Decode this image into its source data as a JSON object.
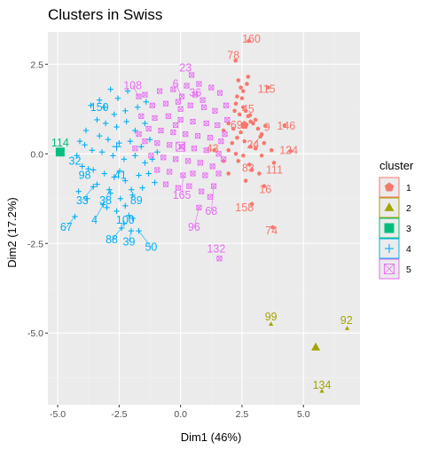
{
  "chart_data": {
    "type": "scatter",
    "title": "Clusters in Swiss",
    "xlabel": "Dim1 (46%)",
    "ylabel": "Dim2 (17.2%)",
    "xlim": [
      -5.4,
      7.3
    ],
    "ylim": [
      -7.0,
      3.4
    ],
    "xticks": [
      -5.0,
      -2.5,
      0.0,
      2.5,
      5.0
    ],
    "xtick_labels": [
      "-5.0",
      "-2.5",
      "0.0",
      "2.5",
      "5.0"
    ],
    "yticks": [
      2.5,
      0.0,
      -2.5,
      -5.0
    ],
    "ytick_labels": [
      "2.5",
      "0.0",
      "-2.5",
      "-5.0"
    ],
    "grid": true,
    "legend": {
      "title": "cluster",
      "position": "right",
      "entries": [
        "1",
        "2",
        "3",
        "4",
        "5"
      ]
    },
    "colors": {
      "1": "#F8766D",
      "2": "#A3A500",
      "3": "#00BF7D",
      "4": "#00B0F6",
      "5": "#E76BF3",
      "panel": "#EBEBEB",
      "grid_major": "#FFFFFF",
      "grid_minor": "#F2F2F2"
    },
    "markers": {
      "1": "pentagon",
      "2": "triangle",
      "3": "square",
      "4": "cross",
      "5": "square-x"
    },
    "centers": [
      {
        "cluster": "1",
        "x": 2.6,
        "y": 0.8
      },
      {
        "cluster": "2",
        "x": 5.5,
        "y": -5.4
      },
      {
        "cluster": "3",
        "x": -4.9,
        "y": 0.05
      },
      {
        "cluster": "4",
        "x": -2.6,
        "y": 0.2
      },
      {
        "cluster": "5",
        "x": 0.0,
        "y": 0.2
      }
    ],
    "labeled_points": [
      {
        "label": "160",
        "cluster": "1",
        "x": 2.78,
        "y": 3.15,
        "lx": 2.88,
        "ly": 3.2
      },
      {
        "label": "78",
        "cluster": "1",
        "x": 2.24,
        "y": 2.6,
        "lx": 2.15,
        "ly": 2.75
      },
      {
        "label": "115",
        "cluster": "1",
        "x": 3.55,
        "y": 1.85,
        "lx": 3.5,
        "ly": 1.8
      },
      {
        "label": "45",
        "cluster": "1",
        "x": 2.83,
        "y": 1.08,
        "lx": 2.75,
        "ly": 1.25
      },
      {
        "label": "69",
        "cluster": "1",
        "x": 2.6,
        "y": 0.8,
        "lx": 2.28,
        "ly": 0.8
      },
      {
        "label": "9",
        "cluster": "1",
        "x": 3.45,
        "y": 0.78,
        "lx": 3.52,
        "ly": 0.74
      },
      {
        "label": "146",
        "cluster": "1",
        "x": 4.23,
        "y": 0.79,
        "lx": 4.3,
        "ly": 0.77
      },
      {
        "label": "24",
        "cluster": "1",
        "x": 3.25,
        "y": 0.48,
        "lx": 2.95,
        "ly": 0.26
      },
      {
        "label": "124",
        "cluster": "1",
        "x": 4.47,
        "y": 0.08,
        "lx": 4.4,
        "ly": 0.1
      },
      {
        "label": "43",
        "cluster": "1",
        "x": 1.37,
        "y": 0.1,
        "lx": 1.3,
        "ly": 0.15
      },
      {
        "label": "83",
        "cluster": "1",
        "x": 2.8,
        "y": -0.3,
        "lx": 2.75,
        "ly": -0.4
      },
      {
        "label": "111",
        "cluster": "1",
        "x": 3.8,
        "y": -0.25,
        "lx": 3.82,
        "ly": -0.45
      },
      {
        "label": "16",
        "cluster": "1",
        "x": 3.4,
        "y": -0.9,
        "lx": 3.45,
        "ly": -1.0
      },
      {
        "label": "158",
        "cluster": "1",
        "x": 2.9,
        "y": -1.4,
        "lx": 2.6,
        "ly": -1.5
      },
      {
        "label": "74",
        "cluster": "1",
        "x": 3.75,
        "y": -2.05,
        "lx": 3.7,
        "ly": -2.15
      },
      {
        "label": "99",
        "cluster": "2",
        "x": 3.68,
        "y": -4.75,
        "lx": 3.68,
        "ly": -4.55
      },
      {
        "label": "92",
        "cluster": "2",
        "x": 6.78,
        "y": -4.87,
        "lx": 6.75,
        "ly": -4.65
      },
      {
        "label": "134",
        "cluster": "2",
        "x": 5.75,
        "y": -6.62,
        "lx": 5.75,
        "ly": -6.45
      },
      {
        "label": "114",
        "cluster": "3",
        "x": -4.95,
        "y": 0.09,
        "lx": -4.9,
        "ly": 0.3
      },
      {
        "label": "150",
        "cluster": "4",
        "x": -3.3,
        "y": 1.5,
        "lx": -3.3,
        "ly": 1.3
      },
      {
        "label": "32",
        "cluster": "4",
        "x": -4.22,
        "y": -0.05,
        "lx": -4.3,
        "ly": -0.2
      },
      {
        "label": "98",
        "cluster": "4",
        "x": -3.75,
        "y": -0.42,
        "lx": -3.9,
        "ly": -0.6
      },
      {
        "label": "41",
        "cluster": "4",
        "x": -2.48,
        "y": -0.48,
        "lx": -2.45,
        "ly": -0.6
      },
      {
        "label": "33",
        "cluster": "4",
        "x": -3.55,
        "y": -0.92,
        "lx": -4.0,
        "ly": -1.3
      },
      {
        "label": "38",
        "cluster": "4",
        "x": -2.9,
        "y": -1.0,
        "lx": -3.05,
        "ly": -1.3
      },
      {
        "label": "89",
        "cluster": "4",
        "x": -1.95,
        "y": -1.15,
        "lx": -1.8,
        "ly": -1.3
      },
      {
        "label": "4",
        "cluster": "4",
        "x": -3.15,
        "y": -1.42,
        "lx": -3.5,
        "ly": -1.85
      },
      {
        "label": "100",
        "cluster": "4",
        "x": -2.1,
        "y": -1.72,
        "lx": -2.25,
        "ly": -1.85
      },
      {
        "label": "67",
        "cluster": "4",
        "x": -4.3,
        "y": -1.75,
        "lx": -4.65,
        "ly": -2.05
      },
      {
        "label": "88",
        "cluster": "4",
        "x": -2.4,
        "y": -2.07,
        "lx": -2.8,
        "ly": -2.4
      },
      {
        "label": "39",
        "cluster": "4",
        "x": -2.01,
        "y": -2.15,
        "lx": -2.1,
        "ly": -2.45
      },
      {
        "label": "50",
        "cluster": "4",
        "x": -1.7,
        "y": -2.15,
        "lx": -1.2,
        "ly": -2.6
      },
      {
        "label": "108",
        "cluster": "5",
        "x": -1.7,
        "y": 1.6,
        "lx": -1.95,
        "ly": 1.9
      },
      {
        "label": "23",
        "cluster": "5",
        "x": 0.45,
        "y": 2.2,
        "lx": 0.2,
        "ly": 2.4
      },
      {
        "label": "6",
        "cluster": "5",
        "x": 0.05,
        "y": 1.6,
        "lx": -0.2,
        "ly": 1.95
      },
      {
        "label": "36",
        "cluster": "5",
        "x": 0.9,
        "y": 1.5,
        "lx": 0.6,
        "ly": 1.7
      },
      {
        "label": "165",
        "cluster": "5",
        "x": 0.1,
        "y": -0.6,
        "lx": 0.05,
        "ly": -1.15
      },
      {
        "label": "68",
        "cluster": "5",
        "x": 1.35,
        "y": -0.9,
        "lx": 1.25,
        "ly": -1.6
      },
      {
        "label": "96",
        "cluster": "5",
        "x": 0.75,
        "y": -1.5,
        "lx": 0.55,
        "ly": -2.05
      },
      {
        "label": "132",
        "cluster": "5",
        "x": 1.58,
        "y": -2.92,
        "lx": 1.45,
        "ly": -2.65
      }
    ],
    "points": [
      {
        "cluster": "1",
        "coords": [
          [
            2.75,
            2.15
          ],
          [
            2.7,
            1.95
          ],
          [
            2.35,
            2.05
          ],
          [
            2.45,
            1.85
          ],
          [
            2.55,
            1.75
          ],
          [
            2.3,
            1.6
          ],
          [
            2.5,
            1.55
          ],
          [
            2.25,
            1.4
          ],
          [
            2.55,
            1.3
          ],
          [
            2.65,
            1.2
          ],
          [
            2.2,
            1.2
          ],
          [
            2.4,
            1.1
          ],
          [
            2.75,
            1.05
          ],
          [
            2.85,
            0.9
          ],
          [
            2.95,
            0.85
          ],
          [
            3.05,
            0.95
          ],
          [
            3.15,
            0.7
          ],
          [
            3.3,
            0.55
          ],
          [
            2.45,
            0.6
          ],
          [
            2.3,
            0.45
          ],
          [
            2.1,
            0.3
          ],
          [
            2.6,
            0.35
          ],
          [
            2.85,
            0.2
          ],
          [
            3.05,
            0.15
          ],
          [
            1.95,
            0.1
          ],
          [
            2.25,
            0.0
          ],
          [
            2.55,
            -0.05
          ],
          [
            3.3,
            -0.05
          ],
          [
            1.75,
            -0.2
          ],
          [
            2.35,
            -0.2
          ],
          [
            2.9,
            -0.45
          ],
          [
            3.2,
            -0.55
          ],
          [
            2.65,
            -0.75
          ],
          [
            1.95,
            -0.55
          ],
          [
            1.75,
            0.65
          ],
          [
            1.95,
            0.85
          ],
          [
            2.15,
            0.7
          ],
          [
            3.4,
            0.3
          ],
          [
            3.7,
            0.1
          ]
        ]
      },
      {
        "cluster": "4",
        "coords": [
          [
            -2.85,
            1.8
          ],
          [
            -2.55,
            1.55
          ],
          [
            -2.15,
            1.75
          ],
          [
            -3.1,
            1.3
          ],
          [
            -2.7,
            1.1
          ],
          [
            -2.25,
            1.2
          ],
          [
            -1.75,
            1.3
          ],
          [
            -1.4,
            1.45
          ],
          [
            -3.4,
            0.95
          ],
          [
            -3.05,
            0.85
          ],
          [
            -2.6,
            0.75
          ],
          [
            -2.2,
            0.9
          ],
          [
            -1.85,
            0.65
          ],
          [
            -1.45,
            0.85
          ],
          [
            -3.3,
            0.5
          ],
          [
            -2.95,
            0.4
          ],
          [
            -2.5,
            0.3
          ],
          [
            -2.05,
            0.35
          ],
          [
            -1.6,
            0.2
          ],
          [
            -1.25,
            0.4
          ],
          [
            -3.9,
            0.25
          ],
          [
            -3.6,
            0.1
          ],
          [
            -3.2,
            0.05
          ],
          [
            -2.75,
            -0.05
          ],
          [
            -2.3,
            -0.15
          ],
          [
            -1.85,
            -0.05
          ],
          [
            -1.45,
            -0.25
          ],
          [
            -4.0,
            -0.35
          ],
          [
            -3.55,
            -0.45
          ],
          [
            -3.1,
            -0.55
          ],
          [
            -2.7,
            -0.65
          ],
          [
            -2.25,
            -0.75
          ],
          [
            -1.7,
            -0.6
          ],
          [
            -1.3,
            -0.55
          ],
          [
            -3.4,
            -0.85
          ],
          [
            -2.85,
            -1.1
          ],
          [
            -2.45,
            -1.25
          ],
          [
            -2.0,
            -1.0
          ],
          [
            -1.55,
            -0.95
          ],
          [
            -3.0,
            -1.5
          ],
          [
            -2.6,
            -1.6
          ],
          [
            -2.25,
            -1.45
          ],
          [
            -3.8,
            -1.25
          ],
          [
            -4.15,
            -1.05
          ],
          [
            -1.95,
            -1.8
          ],
          [
            -2.3,
            -1.95
          ],
          [
            -1.15,
            -0.15
          ],
          [
            -0.95,
            0.05
          ],
          [
            -1.05,
            -0.8
          ],
          [
            -3.65,
            1.35
          ],
          [
            -3.85,
            0.65
          ],
          [
            -4.1,
            0.35
          ]
        ]
      },
      {
        "cluster": "5",
        "coords": [
          [
            -1.45,
            1.65
          ],
          [
            -0.85,
            1.75
          ],
          [
            -0.3,
            1.8
          ],
          [
            0.25,
            1.9
          ],
          [
            0.75,
            1.95
          ],
          [
            1.25,
            1.85
          ],
          [
            1.6,
            1.7
          ],
          [
            -1.15,
            1.35
          ],
          [
            -0.6,
            1.4
          ],
          [
            -0.1,
            1.45
          ],
          [
            0.4,
            1.35
          ],
          [
            0.95,
            1.3
          ],
          [
            1.4,
            1.2
          ],
          [
            1.85,
            1.35
          ],
          [
            -1.6,
            1.05
          ],
          [
            -1.05,
            1.0
          ],
          [
            -0.5,
            1.05
          ],
          [
            0.0,
            0.95
          ],
          [
            0.5,
            0.9
          ],
          [
            1.05,
            0.85
          ],
          [
            1.5,
            0.8
          ],
          [
            1.9,
            0.95
          ],
          [
            -1.3,
            0.7
          ],
          [
            -0.8,
            0.65
          ],
          [
            -0.3,
            0.6
          ],
          [
            0.2,
            0.55
          ],
          [
            0.7,
            0.5
          ],
          [
            1.2,
            0.45
          ],
          [
            1.65,
            0.35
          ],
          [
            -1.45,
            0.35
          ],
          [
            -0.95,
            0.3
          ],
          [
            -0.45,
            0.25
          ],
          [
            0.05,
            0.2
          ],
          [
            0.55,
            0.15
          ],
          [
            1.05,
            0.1
          ],
          [
            1.55,
            0.0
          ],
          [
            -1.2,
            -0.05
          ],
          [
            -0.7,
            -0.1
          ],
          [
            -0.2,
            -0.15
          ],
          [
            0.3,
            -0.2
          ],
          [
            0.8,
            -0.25
          ],
          [
            1.3,
            -0.35
          ],
          [
            -0.95,
            -0.45
          ],
          [
            -0.45,
            -0.5
          ],
          [
            0.5,
            -0.55
          ],
          [
            1.0,
            -0.6
          ],
          [
            1.55,
            -0.55
          ],
          [
            -0.6,
            -0.85
          ],
          [
            -0.1,
            -0.95
          ],
          [
            0.35,
            -0.9
          ],
          [
            0.85,
            -1.05
          ],
          [
            1.2,
            -1.2
          ],
          [
            -1.7,
            0.55
          ],
          [
            -1.85,
            0.15
          ],
          [
            1.8,
            0.55
          ],
          [
            0.0,
            1.25
          ],
          [
            0.6,
            1.65
          ],
          [
            -0.2,
            0.8
          ],
          [
            1.75,
            -0.15
          ]
        ]
      }
    ]
  }
}
